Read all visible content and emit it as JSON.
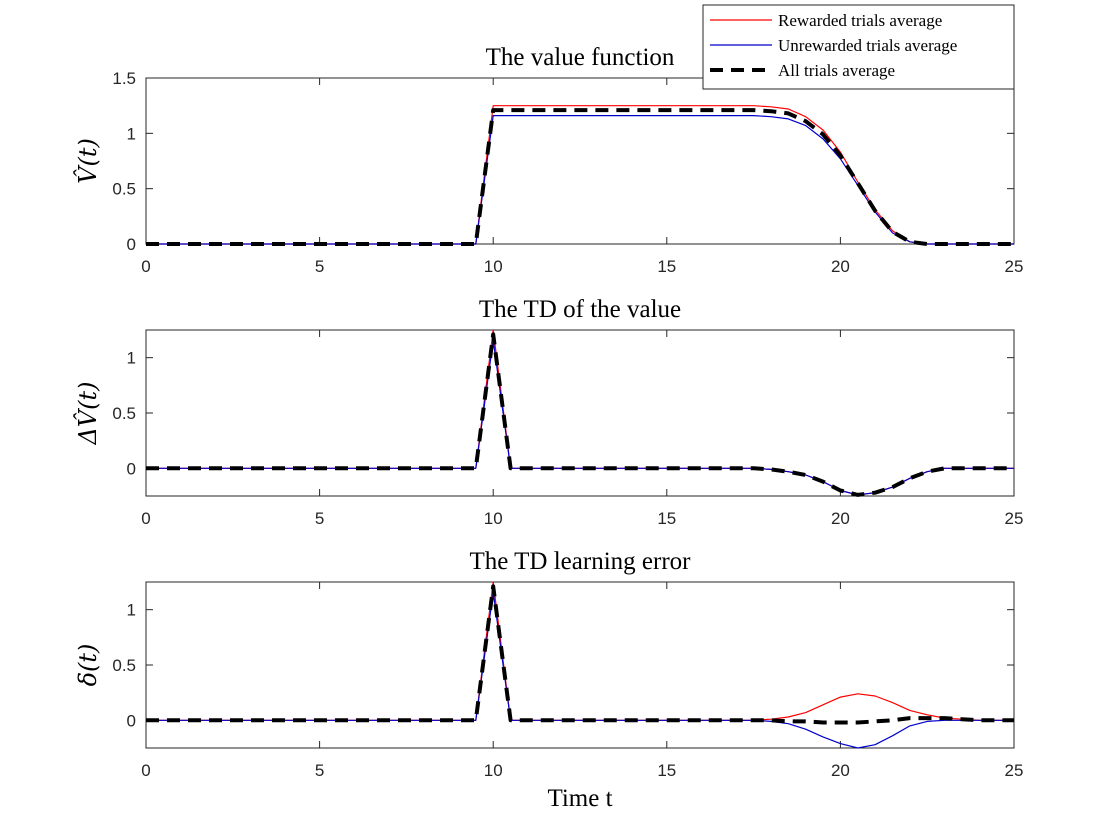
{
  "colors": {
    "rewarded": "#ff0000",
    "unrewarded": "#0000cc",
    "all": "#000000",
    "axis": "#262626",
    "background": "#ffffff"
  },
  "legend": {
    "placement": "top-right",
    "entries": [
      "Rewarded trials average",
      "Unrewarded trials average",
      "All trials average"
    ]
  },
  "chart_data": [
    {
      "type": "line",
      "title": "The value function",
      "ylabel": "V̂(t)",
      "xlabel": "",
      "xlim": [
        0,
        25
      ],
      "ylim": [
        0,
        1.5
      ],
      "xticks": [
        0,
        5,
        10,
        15,
        20,
        25
      ],
      "yticks": [
        0,
        0.5,
        1,
        1.5
      ],
      "ytick_labels": [
        "0",
        "0.5",
        "1",
        "1.5"
      ],
      "grid": false,
      "series": [
        {
          "name": "Rewarded trials average",
          "style": "solid",
          "x": [
            0,
            9.5,
            10,
            17.5,
            18,
            18.5,
            19,
            19.5,
            20,
            20.5,
            21,
            21.5,
            22,
            22.5,
            25
          ],
          "y": [
            0,
            0,
            1.25,
            1.25,
            1.24,
            1.22,
            1.15,
            1.03,
            0.83,
            0.56,
            0.31,
            0.12,
            0.02,
            0,
            0
          ]
        },
        {
          "name": "Unrewarded trials average",
          "style": "solid",
          "x": [
            0,
            9.5,
            10,
            17.5,
            18,
            18.5,
            19,
            19.5,
            20,
            20.5,
            21,
            21.5,
            22,
            22.5,
            25
          ],
          "y": [
            0,
            0,
            1.16,
            1.16,
            1.15,
            1.13,
            1.07,
            0.95,
            0.77,
            0.53,
            0.29,
            0.1,
            0.02,
            0,
            0
          ]
        },
        {
          "name": "All trials average",
          "style": "dashed",
          "x": [
            0,
            9.5,
            10,
            17.5,
            18,
            18.5,
            19,
            19.5,
            20,
            20.5,
            21,
            21.5,
            22,
            22.5,
            25
          ],
          "y": [
            0,
            0,
            1.21,
            1.21,
            1.2,
            1.18,
            1.11,
            0.99,
            0.8,
            0.55,
            0.3,
            0.11,
            0.02,
            0,
            0
          ]
        }
      ]
    },
    {
      "type": "line",
      "title": "The TD of the value",
      "ylabel": "ΔV̂(t)",
      "xlabel": "",
      "xlim": [
        0,
        25
      ],
      "ylim": [
        -0.25,
        1.25
      ],
      "xticks": [
        0,
        5,
        10,
        15,
        20,
        25
      ],
      "yticks": [
        0,
        0.5,
        1
      ],
      "ytick_labels": [
        "0",
        "0.5",
        "1"
      ],
      "grid": false,
      "series": [
        {
          "name": "Rewarded trials average",
          "style": "solid",
          "x": [
            0,
            9.5,
            10,
            10.5,
            17.5,
            18,
            18.5,
            19,
            19.5,
            20,
            20.5,
            21,
            21.5,
            22,
            22.5,
            23,
            25
          ],
          "y": [
            0,
            0,
            1.25,
            0,
            0,
            -0.01,
            -0.03,
            -0.06,
            -0.12,
            -0.2,
            -0.24,
            -0.22,
            -0.17,
            -0.09,
            -0.03,
            0,
            0
          ]
        },
        {
          "name": "Unrewarded trials average",
          "style": "solid",
          "x": [
            0,
            9.5,
            10,
            10.5,
            17.5,
            18,
            18.5,
            19,
            19.5,
            20,
            20.5,
            21,
            21.5,
            22,
            22.5,
            23,
            25
          ],
          "y": [
            0,
            0,
            1.16,
            0,
            0,
            -0.01,
            -0.03,
            -0.06,
            -0.12,
            -0.2,
            -0.24,
            -0.22,
            -0.17,
            -0.09,
            -0.03,
            0,
            0
          ]
        },
        {
          "name": "All trials average",
          "style": "dashed",
          "x": [
            0,
            9.5,
            10,
            10.5,
            17.5,
            18,
            18.5,
            19,
            19.5,
            20,
            20.5,
            21,
            21.5,
            22,
            22.5,
            23,
            25
          ],
          "y": [
            0,
            0,
            1.21,
            0,
            0,
            -0.01,
            -0.03,
            -0.06,
            -0.12,
            -0.2,
            -0.24,
            -0.22,
            -0.17,
            -0.09,
            -0.03,
            0,
            0
          ]
        }
      ]
    },
    {
      "type": "line",
      "title": "The TD learning error",
      "ylabel": "δ(t)",
      "xlabel": "Time t",
      "xlim": [
        0,
        25
      ],
      "ylim": [
        -0.25,
        1.25
      ],
      "xticks": [
        0,
        5,
        10,
        15,
        20,
        25
      ],
      "yticks": [
        0,
        0.5,
        1
      ],
      "ytick_labels": [
        "0",
        "0.5",
        "1"
      ],
      "grid": false,
      "series": [
        {
          "name": "Rewarded trials average",
          "style": "solid",
          "x": [
            0,
            9.5,
            10,
            10.5,
            17.5,
            18,
            18.5,
            19,
            19.5,
            20,
            20.5,
            21,
            21.5,
            22,
            22.5,
            23,
            23.5,
            24,
            25
          ],
          "y": [
            0,
            0,
            1.25,
            0,
            0,
            0.01,
            0.03,
            0.07,
            0.14,
            0.21,
            0.24,
            0.22,
            0.16,
            0.09,
            0.05,
            0.02,
            0.01,
            0,
            0
          ]
        },
        {
          "name": "Unrewarded trials average",
          "style": "solid",
          "x": [
            0,
            9.5,
            10,
            10.5,
            17.5,
            18,
            18.5,
            19,
            19.5,
            20,
            20.5,
            21,
            21.5,
            22,
            22.5,
            23,
            25
          ],
          "y": [
            0,
            0,
            1.16,
            0,
            0,
            -0.01,
            -0.03,
            -0.08,
            -0.15,
            -0.21,
            -0.25,
            -0.22,
            -0.14,
            -0.05,
            -0.01,
            0,
            0
          ]
        },
        {
          "name": "All trials average",
          "style": "dashed",
          "x": [
            0,
            9.5,
            10,
            10.5,
            17.5,
            18,
            18.5,
            19,
            19.5,
            20,
            20.5,
            21,
            21.5,
            22,
            22.5,
            23,
            23.5,
            24,
            25
          ],
          "y": [
            0,
            0,
            1.21,
            0,
            0,
            0,
            -0.01,
            -0.01,
            -0.02,
            -0.02,
            -0.02,
            -0.01,
            0,
            0.02,
            0.02,
            0.02,
            0.01,
            0,
            0
          ]
        }
      ]
    }
  ]
}
